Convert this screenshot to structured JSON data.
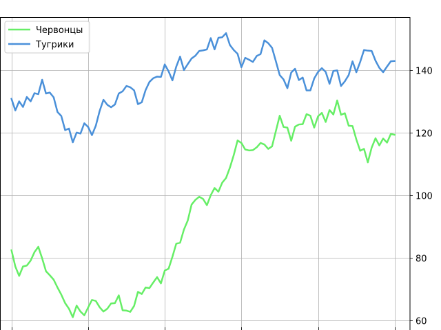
{
  "chart_data": {
    "type": "line",
    "title": "",
    "xlabel": "",
    "ylabel": "",
    "y_axis_side": "right",
    "grid": true,
    "legend_position": "top-left",
    "ylim": [
      57,
      157
    ],
    "xlim": [
      -3,
      104
    ],
    "x": [
      0,
      1,
      2,
      3,
      4,
      5,
      6,
      7,
      8,
      9,
      10,
      11,
      12,
      13,
      14,
      15,
      16,
      17,
      18,
      19,
      20,
      21,
      22,
      23,
      24,
      25,
      26,
      27,
      28,
      29,
      30,
      31,
      32,
      33,
      34,
      35,
      36,
      37,
      38,
      39,
      40,
      41,
      42,
      43,
      44,
      45,
      46,
      47,
      48,
      49,
      50,
      51,
      52,
      53,
      54,
      55,
      56,
      57,
      58,
      59,
      60,
      61,
      62,
      63,
      64,
      65,
      66,
      67,
      68,
      69,
      70,
      71,
      72,
      73,
      74,
      75,
      76,
      77,
      78,
      79,
      80,
      81,
      82,
      83,
      84,
      85,
      86,
      87,
      88,
      89,
      90,
      91,
      92,
      93,
      94,
      95,
      96,
      97,
      98,
      99,
      100
    ],
    "yticks": [
      60,
      80,
      100,
      120,
      140
    ],
    "series": [
      {
        "name": "Червонцы",
        "color": "#66ee66",
        "values": [
          82.5,
          77.3,
          74.3,
          77.3,
          77.6,
          79.2,
          81.9,
          83.6,
          79.9,
          75.8,
          74.5,
          73.1,
          70.6,
          68.3,
          65.6,
          63.8,
          61.1,
          64.8,
          62.9,
          61.7,
          64.2,
          66.6,
          66.3,
          64.3,
          62.9,
          63.8,
          65.5,
          65.6,
          68.1,
          63.3,
          63.2,
          62.8,
          64.7,
          69.2,
          68.5,
          70.6,
          70.4,
          72.2,
          73.9,
          71.9,
          76.0,
          76.6,
          80.4,
          84.6,
          84.9,
          89.1,
          92.0,
          97.1,
          98.6,
          99.6,
          98.9,
          96.9,
          100.1,
          102.4,
          101.2,
          104.1,
          105.6,
          108.9,
          112.9,
          117.6,
          116.8,
          114.7,
          114.4,
          114.5,
          115.4,
          116.8,
          116.3,
          114.9,
          115.7,
          120.6,
          125.5,
          121.9,
          121.7,
          117.5,
          122.0,
          122.7,
          122.8,
          126.0,
          125.5,
          121.7,
          125.3,
          126.4,
          123.5,
          127.3,
          125.9,
          130.4,
          125.8,
          126.3,
          122.3,
          122.2,
          117.9,
          114.3,
          114.9,
          110.6,
          115.3,
          118.3,
          116.0,
          118.2,
          116.9,
          119.7,
          119.4
        ]
      },
      {
        "name": "Тугрики",
        "color": "#4a90d9",
        "values": [
          130.9,
          127.2,
          130.1,
          128.3,
          131.5,
          130.1,
          132.7,
          132.4,
          137.0,
          132.6,
          132.9,
          131.4,
          126.7,
          125.4,
          120.9,
          121.4,
          117.0,
          120.1,
          119.8,
          123.1,
          121.9,
          119.3,
          122.3,
          127.0,
          130.6,
          129.0,
          128.2,
          129.1,
          132.6,
          133.3,
          135.0,
          134.6,
          133.6,
          129.2,
          129.8,
          133.7,
          136.3,
          137.5,
          138.0,
          137.9,
          141.9,
          139.7,
          136.8,
          141.2,
          144.4,
          140.1,
          142.0,
          143.8,
          144.7,
          146.2,
          146.4,
          146.7,
          150.3,
          146.7,
          150.4,
          150.6,
          151.9,
          148.1,
          146.5,
          145.3,
          141.0,
          144.0,
          143.4,
          142.7,
          144.6,
          145.2,
          149.6,
          148.7,
          147.2,
          142.9,
          138.5,
          137.1,
          134.3,
          139.3,
          140.5,
          136.9,
          137.7,
          133.6,
          133.6,
          137.4,
          139.5,
          140.7,
          139.5,
          135.7,
          139.8,
          140.0,
          135.0,
          136.5,
          138.5,
          142.9,
          139.4,
          142.7,
          146.5,
          146.3,
          146.2,
          143.1,
          140.8,
          139.4,
          141.2,
          142.9,
          143.0
        ]
      }
    ]
  }
}
